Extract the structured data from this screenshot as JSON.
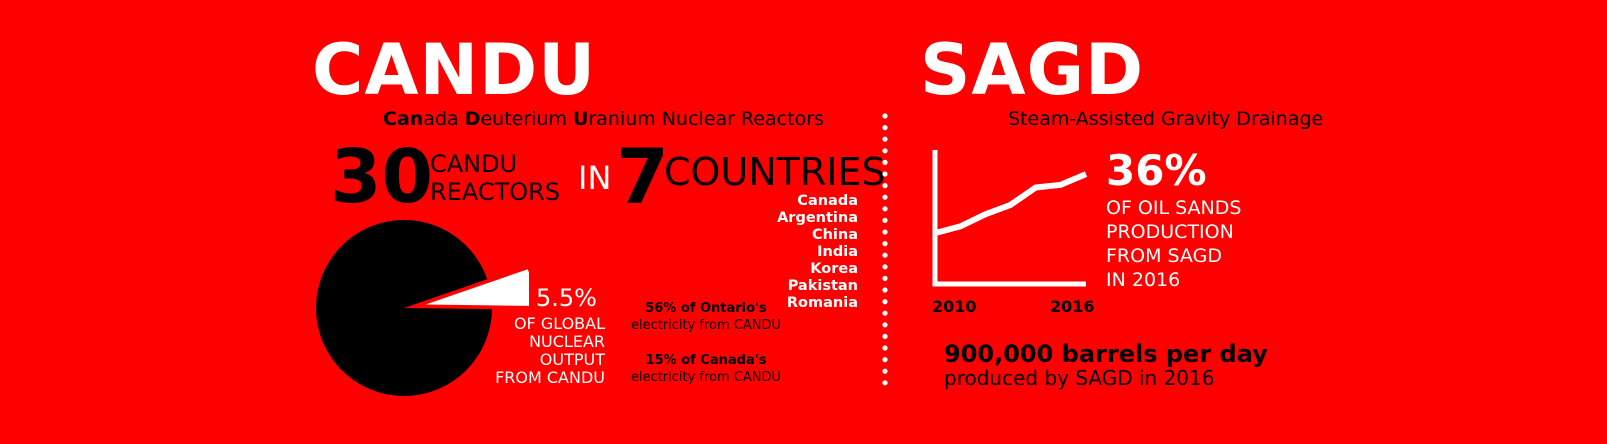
{
  "candu": {
    "title": "CANDU",
    "subtitle_parts": [
      {
        "bold": "Can",
        "rest": "ada "
      },
      {
        "bold": "D",
        "rest": "euterium "
      },
      {
        "bold": "U",
        "rest": "ranium Nuclear Reactors"
      }
    ],
    "reactor_count": "30",
    "reactor_label_line1": "CANDU",
    "reactor_label_line2": "REACTORS",
    "in_word": "IN",
    "country_count": "7",
    "countries_label": "COUNTRIES",
    "countries": [
      "Canada",
      "Argentina",
      "China",
      "India",
      "Korea",
      "Pakistan",
      "Romania"
    ],
    "global_share": "5.5%",
    "global_share_value": 5.5,
    "global_label": [
      "OF GLOBAL",
      "NUCLEAR",
      "OUTPUT",
      "FROM CANDU"
    ],
    "ontario": {
      "strong": "56% of Ontario's",
      "rest": "electricity from CANDU"
    },
    "canada": {
      "strong": "15% of Canada's",
      "rest": "electricity from CANDU"
    }
  },
  "sagd": {
    "title": "SAGD",
    "subtitle": "Steam-Assisted Gravity Drainage",
    "share": "36%",
    "share_label": [
      "OF OIL SANDS",
      "PRODUCTION",
      "FROM SAGD",
      "IN 2016"
    ],
    "barrels": "900,000 barrels per day",
    "barrels_sub": "produced by SAGD in 2016"
  },
  "chart_data": {
    "type": "line",
    "x_tick_labels": [
      "2010",
      "2016"
    ],
    "x": [
      2010,
      2011,
      2012,
      2013,
      2014,
      2015,
      2016
    ],
    "values": [
      0.38,
      0.43,
      0.52,
      0.59,
      0.72,
      0.74,
      0.82
    ],
    "ylim": [
      0,
      1
    ],
    "grid": false
  },
  "colors": {
    "background": "#ff0000",
    "dark": "#000000",
    "light": "#ffffff"
  }
}
